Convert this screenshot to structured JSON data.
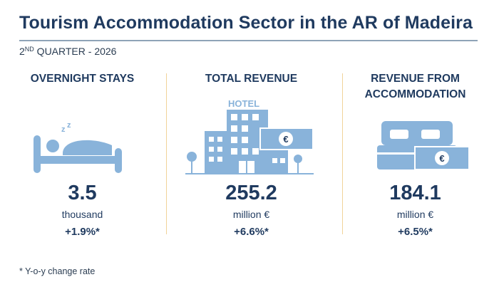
{
  "header": {
    "title": "Tourism Accommodation Sector in the AR of Madeira",
    "period_ordinal": "2",
    "period_superscript": "ND",
    "period_rest": " QUARTER - 2026"
  },
  "indicators": [
    {
      "heading": "OVERNIGHT STAYS",
      "icon": "sleeping-person-bed-icon",
      "value": "3.5",
      "unit": "thousand",
      "change": "+1.9%*"
    },
    {
      "heading": "TOTAL REVENUE",
      "icon": "hotel-building-icon",
      "icon_text": "HOTEL",
      "icon_symbol": "€",
      "value": "255.2",
      "unit": "million €",
      "change": "+6.6%*"
    },
    {
      "heading": "REVENUE FROM ACCOMMODATION",
      "icon": "double-bed-icon",
      "icon_symbol": "€",
      "value": "184.1",
      "unit": "million €",
      "change": "+6.5%*"
    }
  ],
  "footnote": "* Y-o-y change rate",
  "colors": {
    "text": "#1f3a5f",
    "icon": "#89b3da",
    "divider": "#f1d39a"
  }
}
